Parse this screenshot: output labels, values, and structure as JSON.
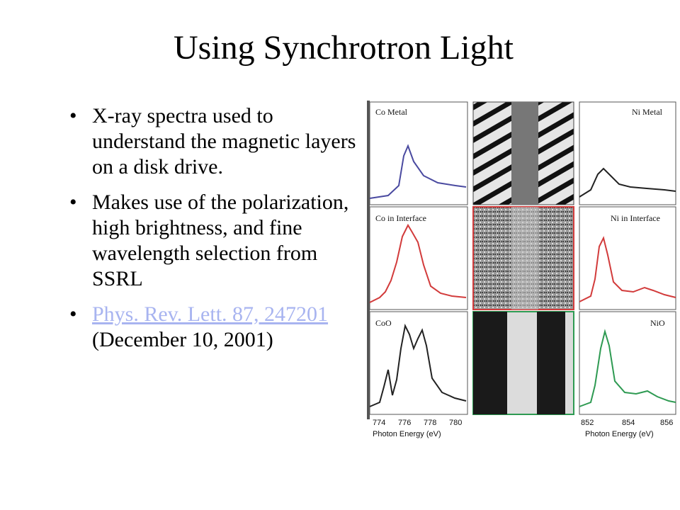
{
  "slide": {
    "title": "Using Synchrotron Light",
    "bullets": [
      {
        "text": "X-ray spectra used to understand the magnetic layers on a disk drive."
      },
      {
        "text": "Makes use of the polarization, high brightness, and fine wavelength selection from SSRL"
      },
      {
        "link_text": "Phys. Rev. Lett. 87, 247201",
        "text_after": " (December 10, 2001)"
      }
    ]
  },
  "figure": {
    "panel_labels": {
      "co_metal": "Co Metal",
      "ni_metal": "Ni Metal",
      "co_interface": "Co in Interface",
      "ni_interface": "Ni in Interface",
      "coo": "CoO",
      "nio": "NiO"
    },
    "left_ticks": [
      "774",
      "776",
      "778",
      "780"
    ],
    "right_ticks": [
      "852",
      "854",
      "856"
    ],
    "axis_label_left": "Photon Energy (eV)",
    "axis_label_right": "Photon Energy (eV)",
    "colors": {
      "row1_curve": "#4a4aa0",
      "row2_curve": "#d23b3b",
      "row3_left_curve": "#222222",
      "row3_right_curve": "#2e9a52",
      "row2_frame": "#d23b3b",
      "row3_frame": "#2e9a52"
    }
  }
}
